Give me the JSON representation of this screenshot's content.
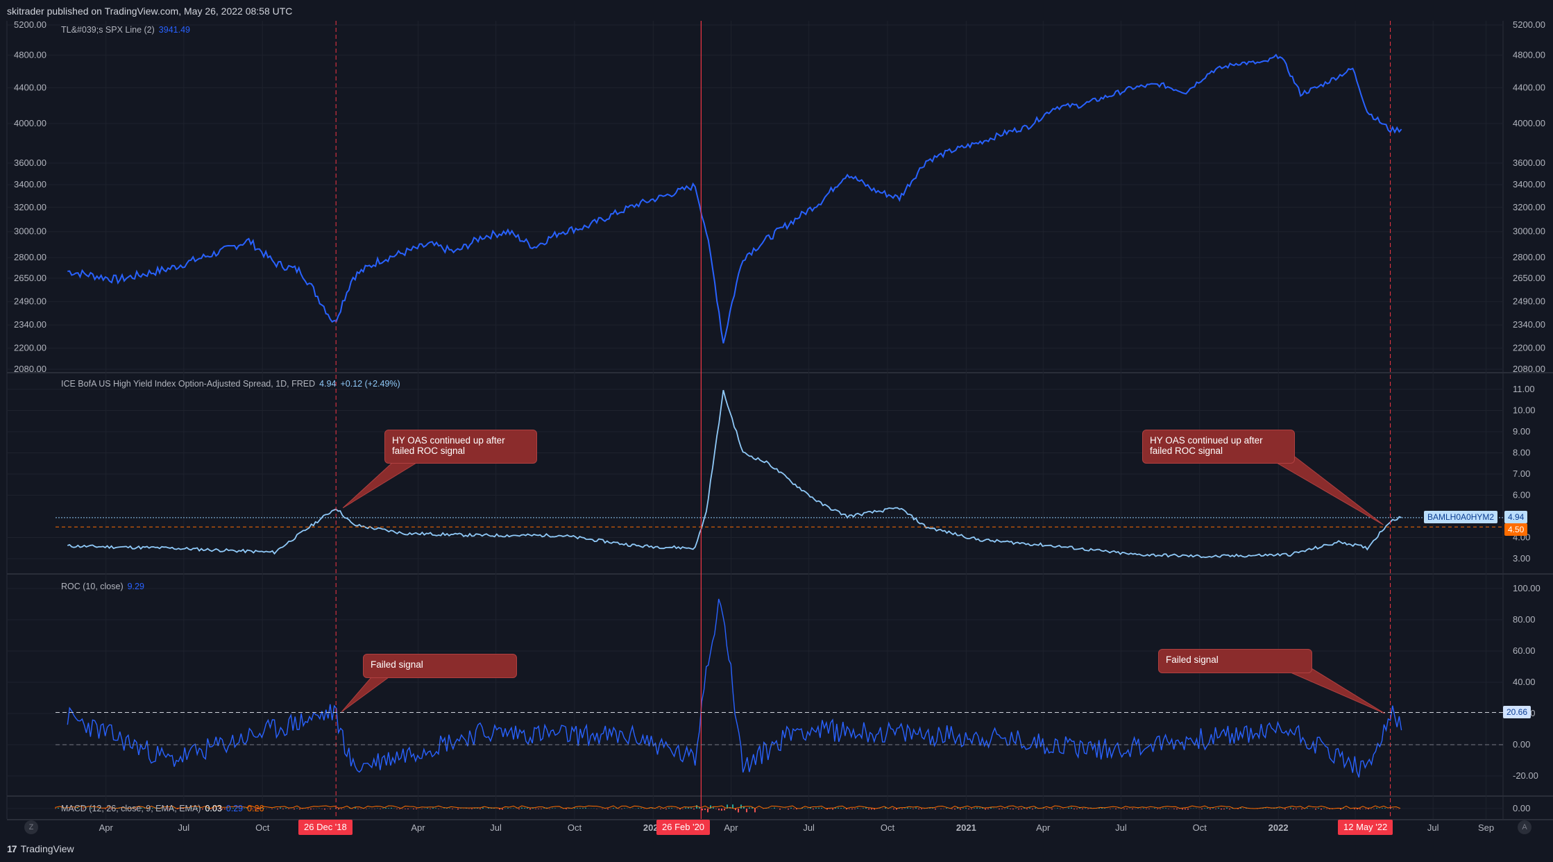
{
  "header": {
    "published": "skitrader published on TradingView.com, May 26, 2022 08:58 UTC"
  },
  "footer": {
    "brand": "TradingView",
    "logo": "17"
  },
  "colors": {
    "spx": "#2962ff",
    "hy": "#90caf9",
    "roc": "#2962ff",
    "callout": "#8b2c2c",
    "marker": "#f23645"
  },
  "panes": {
    "spx": {
      "legend": "TL&#039;s SPX Line (2)",
      "value": "3941.49"
    },
    "hy": {
      "legend": "ICE BofA US High Yield Index Option-Adjusted Spread, 1D, FRED",
      "value": "4.94",
      "change": "+0.12 (+2.49%)",
      "ticker": "BAMLH0A0HYM2",
      "last": "4.94",
      "level": "4.50"
    },
    "roc": {
      "legend": "ROC (10, close)",
      "value": "9.29",
      "level": "20.66"
    },
    "macd": {
      "legend": "MACD (12, 26, close, 9, EMA, EMA)",
      "v1": "0.03",
      "v2": "0.29",
      "v3": "0.26"
    }
  },
  "callouts": [
    {
      "text": "HY OAS continued up after failed ROC signal"
    },
    {
      "text": "HY OAS continued up after failed ROC signal"
    },
    {
      "text": "Failed signal"
    },
    {
      "text": "Failed signal"
    }
  ],
  "dates": {
    "d1": "26 Dec '18",
    "d2": "26 Feb '20",
    "d3": "12 May '22"
  },
  "corner": {
    "left": "Z",
    "right": "A"
  },
  "chart_data": [
    {
      "type": "line",
      "title": "TL&#039;s SPX Line (2)",
      "yticks": [
        "5200.00",
        "4800.00",
        "4400.00",
        "4000.00",
        "3600.00",
        "3400.00",
        "3200.00",
        "3000.00",
        "2800.00",
        "2650.00",
        "2490.00",
        "2340.00",
        "2200.00",
        "2080.00"
      ],
      "xticks": [
        "Apr",
        "Jul",
        "Oct",
        "2020",
        "Apr",
        "Jul",
        "Oct",
        "2021",
        "Apr",
        "Jul",
        "Oct",
        "2022",
        "Apr",
        "Jul",
        "Sep"
      ],
      "x": [
        "2018-02",
        "2018-04",
        "2018-06",
        "2018-08",
        "2018-09",
        "2018-10",
        "2018-11",
        "2018-12-24",
        "2019-01",
        "2019-02",
        "2019-04",
        "2019-05",
        "2019-06",
        "2019-07",
        "2019-08",
        "2019-09",
        "2019-10",
        "2019-11",
        "2019-12",
        "2020-01",
        "2020-02-19",
        "2020-03-03",
        "2020-03-23",
        "2020-04",
        "2020-05",
        "2020-06",
        "2020-07",
        "2020-08",
        "2020-09",
        "2020-10",
        "2020-11",
        "2020-12",
        "2021-01",
        "2021-02",
        "2021-03",
        "2021-04",
        "2021-05",
        "2021-06",
        "2021-07",
        "2021-08",
        "2021-09",
        "2021-10",
        "2021-11",
        "2021-12",
        "2022-01-03",
        "2022-01-27",
        "2022-02",
        "2022-03-29",
        "2022-04",
        "2022-05-12",
        "2022-05-25"
      ],
      "values": [
        2700,
        2640,
        2720,
        2850,
        2930,
        2760,
        2700,
        2350,
        2660,
        2780,
        2900,
        2840,
        2960,
        3000,
        2880,
        3000,
        3040,
        3140,
        3230,
        3300,
        3390,
        3000,
        2230,
        2800,
        2950,
        3100,
        3250,
        3500,
        3350,
        3280,
        3620,
        3720,
        3800,
        3900,
        3970,
        4180,
        4200,
        4300,
        4400,
        4440,
        4350,
        4600,
        4700,
        4700,
        4800,
        4330,
        4400,
        4630,
        4130,
        3930,
        3941
      ]
    },
    {
      "type": "line",
      "title": "ICE BofA US High Yield Index Option-Adjusted Spread, 1D, FRED",
      "yticks": [
        "11.00",
        "10.00",
        "9.00",
        "8.00",
        "7.00",
        "6.00",
        "4.00",
        "3.00"
      ],
      "x": [
        "2018-02",
        "2018-06",
        "2018-10",
        "2018-12-26",
        "2019-01",
        "2019-03",
        "2019-06",
        "2019-09",
        "2019-12",
        "2020-02-19",
        "2020-03-03",
        "2020-03-23",
        "2020-04",
        "2020-05",
        "2020-06",
        "2020-07",
        "2020-08",
        "2020-10",
        "2020-11",
        "2021-01",
        "2021-04",
        "2021-07",
        "2021-10",
        "2022-01",
        "2022-03",
        "2022-04",
        "2022-05-12",
        "2022-05-25"
      ],
      "values": [
        3.6,
        3.5,
        3.3,
        5.4,
        4.6,
        4.2,
        4.1,
        4.1,
        3.6,
        3.5,
        5.2,
        10.9,
        8.0,
        7.5,
        6.5,
        5.6,
        5.0,
        5.4,
        4.5,
        3.9,
        3.6,
        3.2,
        3.1,
        3.2,
        3.8,
        3.5,
        4.8,
        4.94
      ]
    },
    {
      "type": "line",
      "title": "ROC (10, close)",
      "yticks": [
        "100.00",
        "80.00",
        "60.00",
        "40.00",
        "20.00",
        "0.00",
        "-20.00"
      ],
      "x": [
        "2018-02",
        "2018-06",
        "2018-10",
        "2018-12-24",
        "2019-01",
        "2019-06",
        "2019-12",
        "2020-02-19",
        "2020-03-03",
        "2020-03-20",
        "2020-04",
        "2020-06",
        "2021-01",
        "2021-06",
        "2022-01",
        "2022-04",
        "2022-05-12",
        "2022-05-25"
      ],
      "values": [
        18,
        -10,
        10,
        21,
        -15,
        8,
        5,
        -10,
        50,
        96,
        -15,
        10,
        5,
        -3,
        10,
        -18,
        21,
        9.29
      ]
    },
    {
      "type": "line",
      "title": "MACD (12, 26, close, 9, EMA, EMA)",
      "yticks": [
        "0.00"
      ]
    }
  ]
}
